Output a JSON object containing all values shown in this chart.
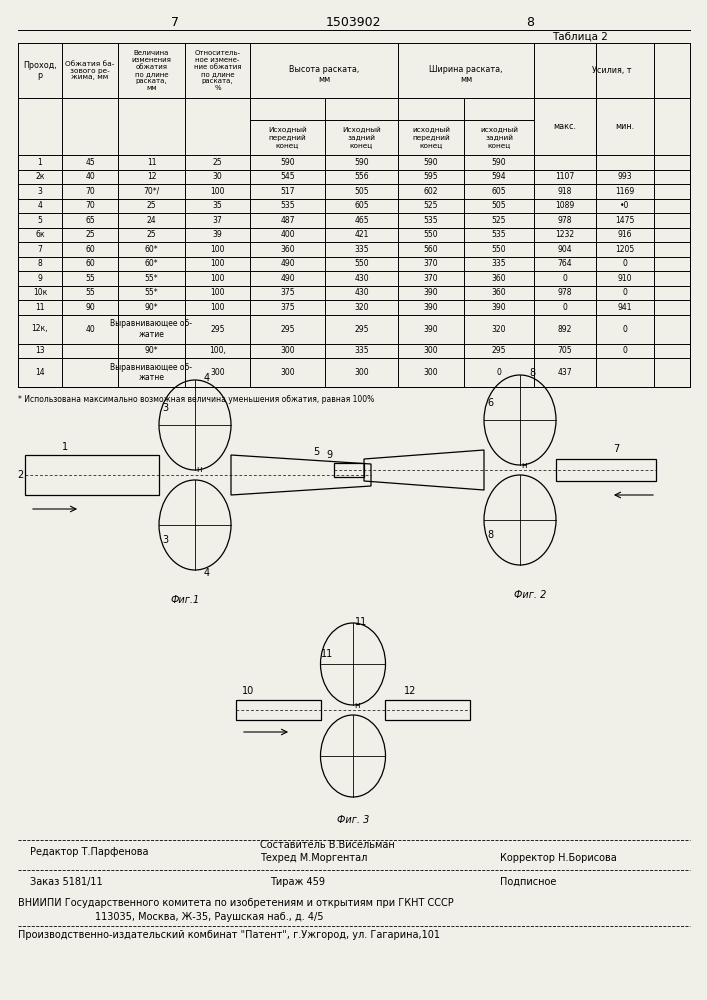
{
  "page_number_left": "7",
  "patent_number": "1503902",
  "page_number_right": "8",
  "table_title": "Таблица 2",
  "bg_color": "#f0efe8",
  "footnote": "* Использована максимально возможная величина уменьшения обжатия, равная 100%",
  "editor_line": "Редактор Т.Парфенова",
  "composer_line1": "Составитель В.Висельман",
  "composer_line2": "Техред М.Моргентал",
  "corrector_line": "Корректор Н.Борисова",
  "order_line": "Заказ 5181/11",
  "circulation_line": "Тираж 459",
  "subscription_line": "Подписное",
  "org_line1": "ВНИИПИ Государственного комитета по изобретениям и открытиям при ГКНТ СССР",
  "org_line2": "113035, Москва, Ж-35, Раушская наб., д. 4/5",
  "publisher_line": "Производственно-издательский комбинат \"Патент\", г.Ужгород, ул. Гагарина,101"
}
